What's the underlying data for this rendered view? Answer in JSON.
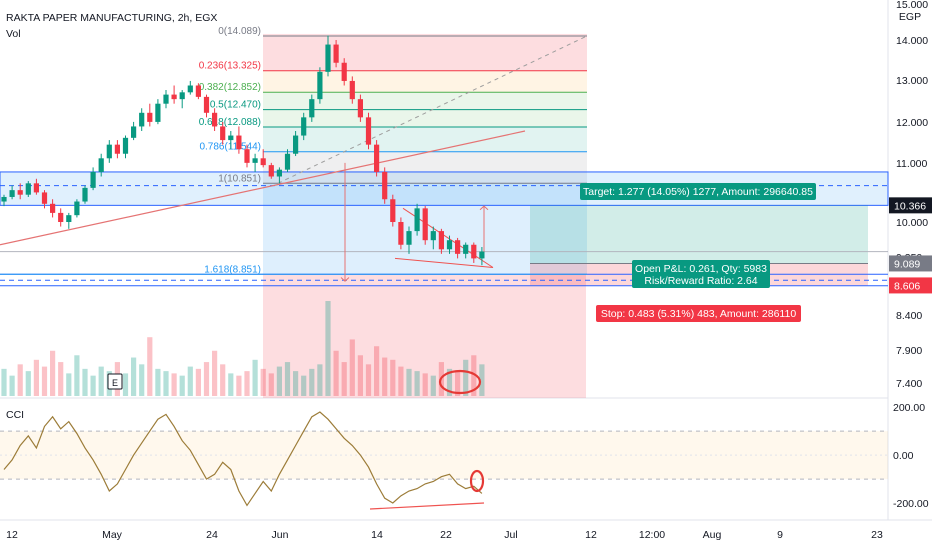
{
  "header": {
    "title": "RAKTA PAPER MANUFACTURING, 2h, EGX",
    "vol_label": "Vol",
    "event_badge": "E"
  },
  "chart_data": {
    "type": "candlestick",
    "price_axis": {
      "currency": "EGP",
      "ylim": [
        7.2,
        15.0
      ],
      "ticks": [
        "15.000",
        "14.000",
        "13.000",
        "12.000",
        "11.000",
        "10.000",
        "9.350",
        "8.400",
        "7.900",
        "7.400"
      ]
    },
    "price_badges": [
      {
        "value": "10.366",
        "price": 10.366,
        "color": "#131722"
      },
      {
        "value": "9.089",
        "price": 9.089,
        "color": "#787b86"
      },
      {
        "value": "8.606",
        "price": 8.606,
        "color": "#f23645"
      }
    ],
    "fibonacci": [
      {
        "label": "0(14.089)",
        "price": 14.089,
        "color": "#787b86"
      },
      {
        "label": "0.236(13.325)",
        "price": 13.325,
        "color": "#f23645"
      },
      {
        "label": "0.382(12.852)",
        "price": 12.852,
        "color": "#4caf50"
      },
      {
        "label": "0.5(12.470)",
        "price": 12.47,
        "color": "#089981"
      },
      {
        "label": "0.618(12.088)",
        "price": 12.088,
        "color": "#089981"
      },
      {
        "label": "0.786(11.544)",
        "price": 11.544,
        "color": "#2196f3"
      },
      {
        "label": "1(10.851)",
        "price": 10.851,
        "color": "#787b86"
      },
      {
        "label": "1.618(8.851)",
        "price": 8.851,
        "color": "#2196f3"
      }
    ],
    "position": {
      "target": "Target: 1.277 (14.05%) 1277, Amount: 296640.85",
      "open_pnl": "Open P&L: 0.261, Qty: 5983",
      "risk_reward": "Risk/Reward Ratio: 2.64",
      "stop": "Stop: 0.483 (5.31%) 483, Amount: 286110",
      "entry": 9.089,
      "target_price": 10.366,
      "stop_price": 8.606
    },
    "support_zone": {
      "low": 10.366,
      "high": 11.1
    },
    "candles": [
      [
        10.45,
        10.6,
        10.35,
        10.55
      ],
      [
        10.55,
        10.8,
        10.5,
        10.7
      ],
      [
        10.7,
        10.85,
        10.5,
        10.6
      ],
      [
        10.6,
        10.9,
        10.55,
        10.85
      ],
      [
        10.85,
        10.95,
        10.6,
        10.65
      ],
      [
        10.65,
        10.7,
        10.3,
        10.4
      ],
      [
        10.4,
        10.5,
        10.1,
        10.2
      ],
      [
        10.2,
        10.3,
        9.9,
        10.0
      ],
      [
        10.0,
        10.2,
        9.85,
        10.15
      ],
      [
        10.15,
        10.5,
        10.1,
        10.45
      ],
      [
        10.45,
        10.8,
        10.4,
        10.75
      ],
      [
        10.75,
        11.2,
        10.7,
        11.1
      ],
      [
        11.1,
        11.5,
        11.0,
        11.4
      ],
      [
        11.4,
        11.8,
        11.3,
        11.7
      ],
      [
        11.7,
        11.8,
        11.4,
        11.5
      ],
      [
        11.5,
        11.9,
        11.4,
        11.85
      ],
      [
        11.85,
        12.2,
        11.8,
        12.1
      ],
      [
        12.1,
        12.5,
        12.0,
        12.4
      ],
      [
        12.4,
        12.6,
        12.1,
        12.2
      ],
      [
        12.2,
        12.7,
        12.15,
        12.6
      ],
      [
        12.6,
        12.9,
        12.5,
        12.8
      ],
      [
        12.8,
        13.0,
        12.6,
        12.7
      ],
      [
        12.7,
        12.9,
        12.5,
        12.85
      ],
      [
        12.85,
        13.1,
        12.8,
        13.0
      ],
      [
        13.0,
        13.05,
        12.7,
        12.75
      ],
      [
        12.75,
        12.8,
        12.3,
        12.4
      ],
      [
        12.4,
        12.5,
        12.0,
        12.1
      ],
      [
        12.1,
        12.2,
        11.7,
        11.8
      ],
      [
        11.8,
        12.0,
        11.6,
        11.9
      ],
      [
        11.9,
        12.1,
        11.5,
        11.6
      ],
      [
        11.6,
        11.7,
        11.2,
        11.3
      ],
      [
        11.3,
        11.5,
        11.1,
        11.4
      ],
      [
        11.4,
        11.6,
        11.2,
        11.25
      ],
      [
        11.25,
        11.3,
        10.95,
        11.0
      ],
      [
        11.0,
        11.2,
        10.85,
        11.15
      ],
      [
        11.15,
        11.6,
        11.1,
        11.5
      ],
      [
        11.5,
        12.0,
        11.45,
        11.9
      ],
      [
        11.9,
        12.4,
        11.8,
        12.3
      ],
      [
        12.3,
        12.8,
        12.2,
        12.7
      ],
      [
        12.7,
        13.4,
        12.6,
        13.3
      ],
      [
        13.3,
        14.1,
        13.2,
        13.9
      ],
      [
        13.9,
        14.0,
        13.4,
        13.5
      ],
      [
        13.5,
        13.6,
        13.0,
        13.1
      ],
      [
        13.1,
        13.2,
        12.6,
        12.7
      ],
      [
        12.7,
        12.8,
        12.2,
        12.3
      ],
      [
        12.3,
        12.4,
        11.6,
        11.7
      ],
      [
        11.7,
        11.8,
        11.0,
        11.1
      ],
      [
        11.1,
        11.2,
        10.4,
        10.5
      ],
      [
        10.5,
        10.6,
        9.9,
        10.0
      ],
      [
        10.0,
        10.1,
        9.4,
        9.5
      ],
      [
        9.5,
        9.9,
        9.3,
        9.8
      ],
      [
        9.8,
        10.4,
        9.7,
        10.3
      ],
      [
        10.3,
        10.35,
        9.5,
        9.6
      ],
      [
        9.6,
        9.9,
        9.4,
        9.8
      ],
      [
        9.8,
        9.85,
        9.3,
        9.4
      ],
      [
        9.4,
        9.7,
        9.3,
        9.6
      ],
      [
        9.6,
        9.65,
        9.2,
        9.3
      ],
      [
        9.3,
        9.55,
        9.2,
        9.5
      ],
      [
        9.5,
        9.55,
        9.1,
        9.2
      ],
      [
        9.2,
        9.45,
        9.05,
        9.35
      ]
    ],
    "volume": [
      120,
      90,
      140,
      110,
      160,
      130,
      200,
      150,
      100,
      180,
      120,
      90,
      130,
      110,
      150,
      100,
      170,
      140,
      260,
      120,
      110,
      100,
      90,
      130,
      120,
      150,
      200,
      140,
      100,
      90,
      110,
      160,
      120,
      100,
      130,
      150,
      110,
      90,
      120,
      140,
      420,
      200,
      150,
      250,
      180,
      140,
      220,
      170,
      160,
      130,
      120,
      110,
      100,
      90,
      150,
      120,
      110,
      160,
      180,
      140
    ],
    "cci": {
      "ticks": [
        "200.00",
        "0.00",
        "-200.00"
      ],
      "levels": [
        100,
        -100
      ],
      "ylim": [
        -250,
        230
      ],
      "values": [
        -60,
        -20,
        40,
        80,
        30,
        120,
        160,
        110,
        140,
        90,
        30,
        -20,
        -80,
        -150,
        -120,
        -60,
        0,
        50,
        100,
        150,
        170,
        120,
        60,
        20,
        -40,
        -100,
        -80,
        -30,
        -60,
        -150,
        -210,
        -160,
        -110,
        -150,
        -80,
        -20,
        40,
        100,
        160,
        180,
        150,
        110,
        70,
        40,
        0,
        -50,
        -120,
        -180,
        -200,
        -170,
        -150,
        -140,
        -120,
        -110,
        -90,
        -80,
        -120,
        -140,
        -130,
        -160
      ]
    },
    "time_axis": {
      "labels": [
        "12",
        "May",
        "24",
        "Jun",
        "14",
        "22",
        "Jul",
        "12",
        "12:00",
        "Aug",
        "9",
        "23"
      ]
    }
  }
}
